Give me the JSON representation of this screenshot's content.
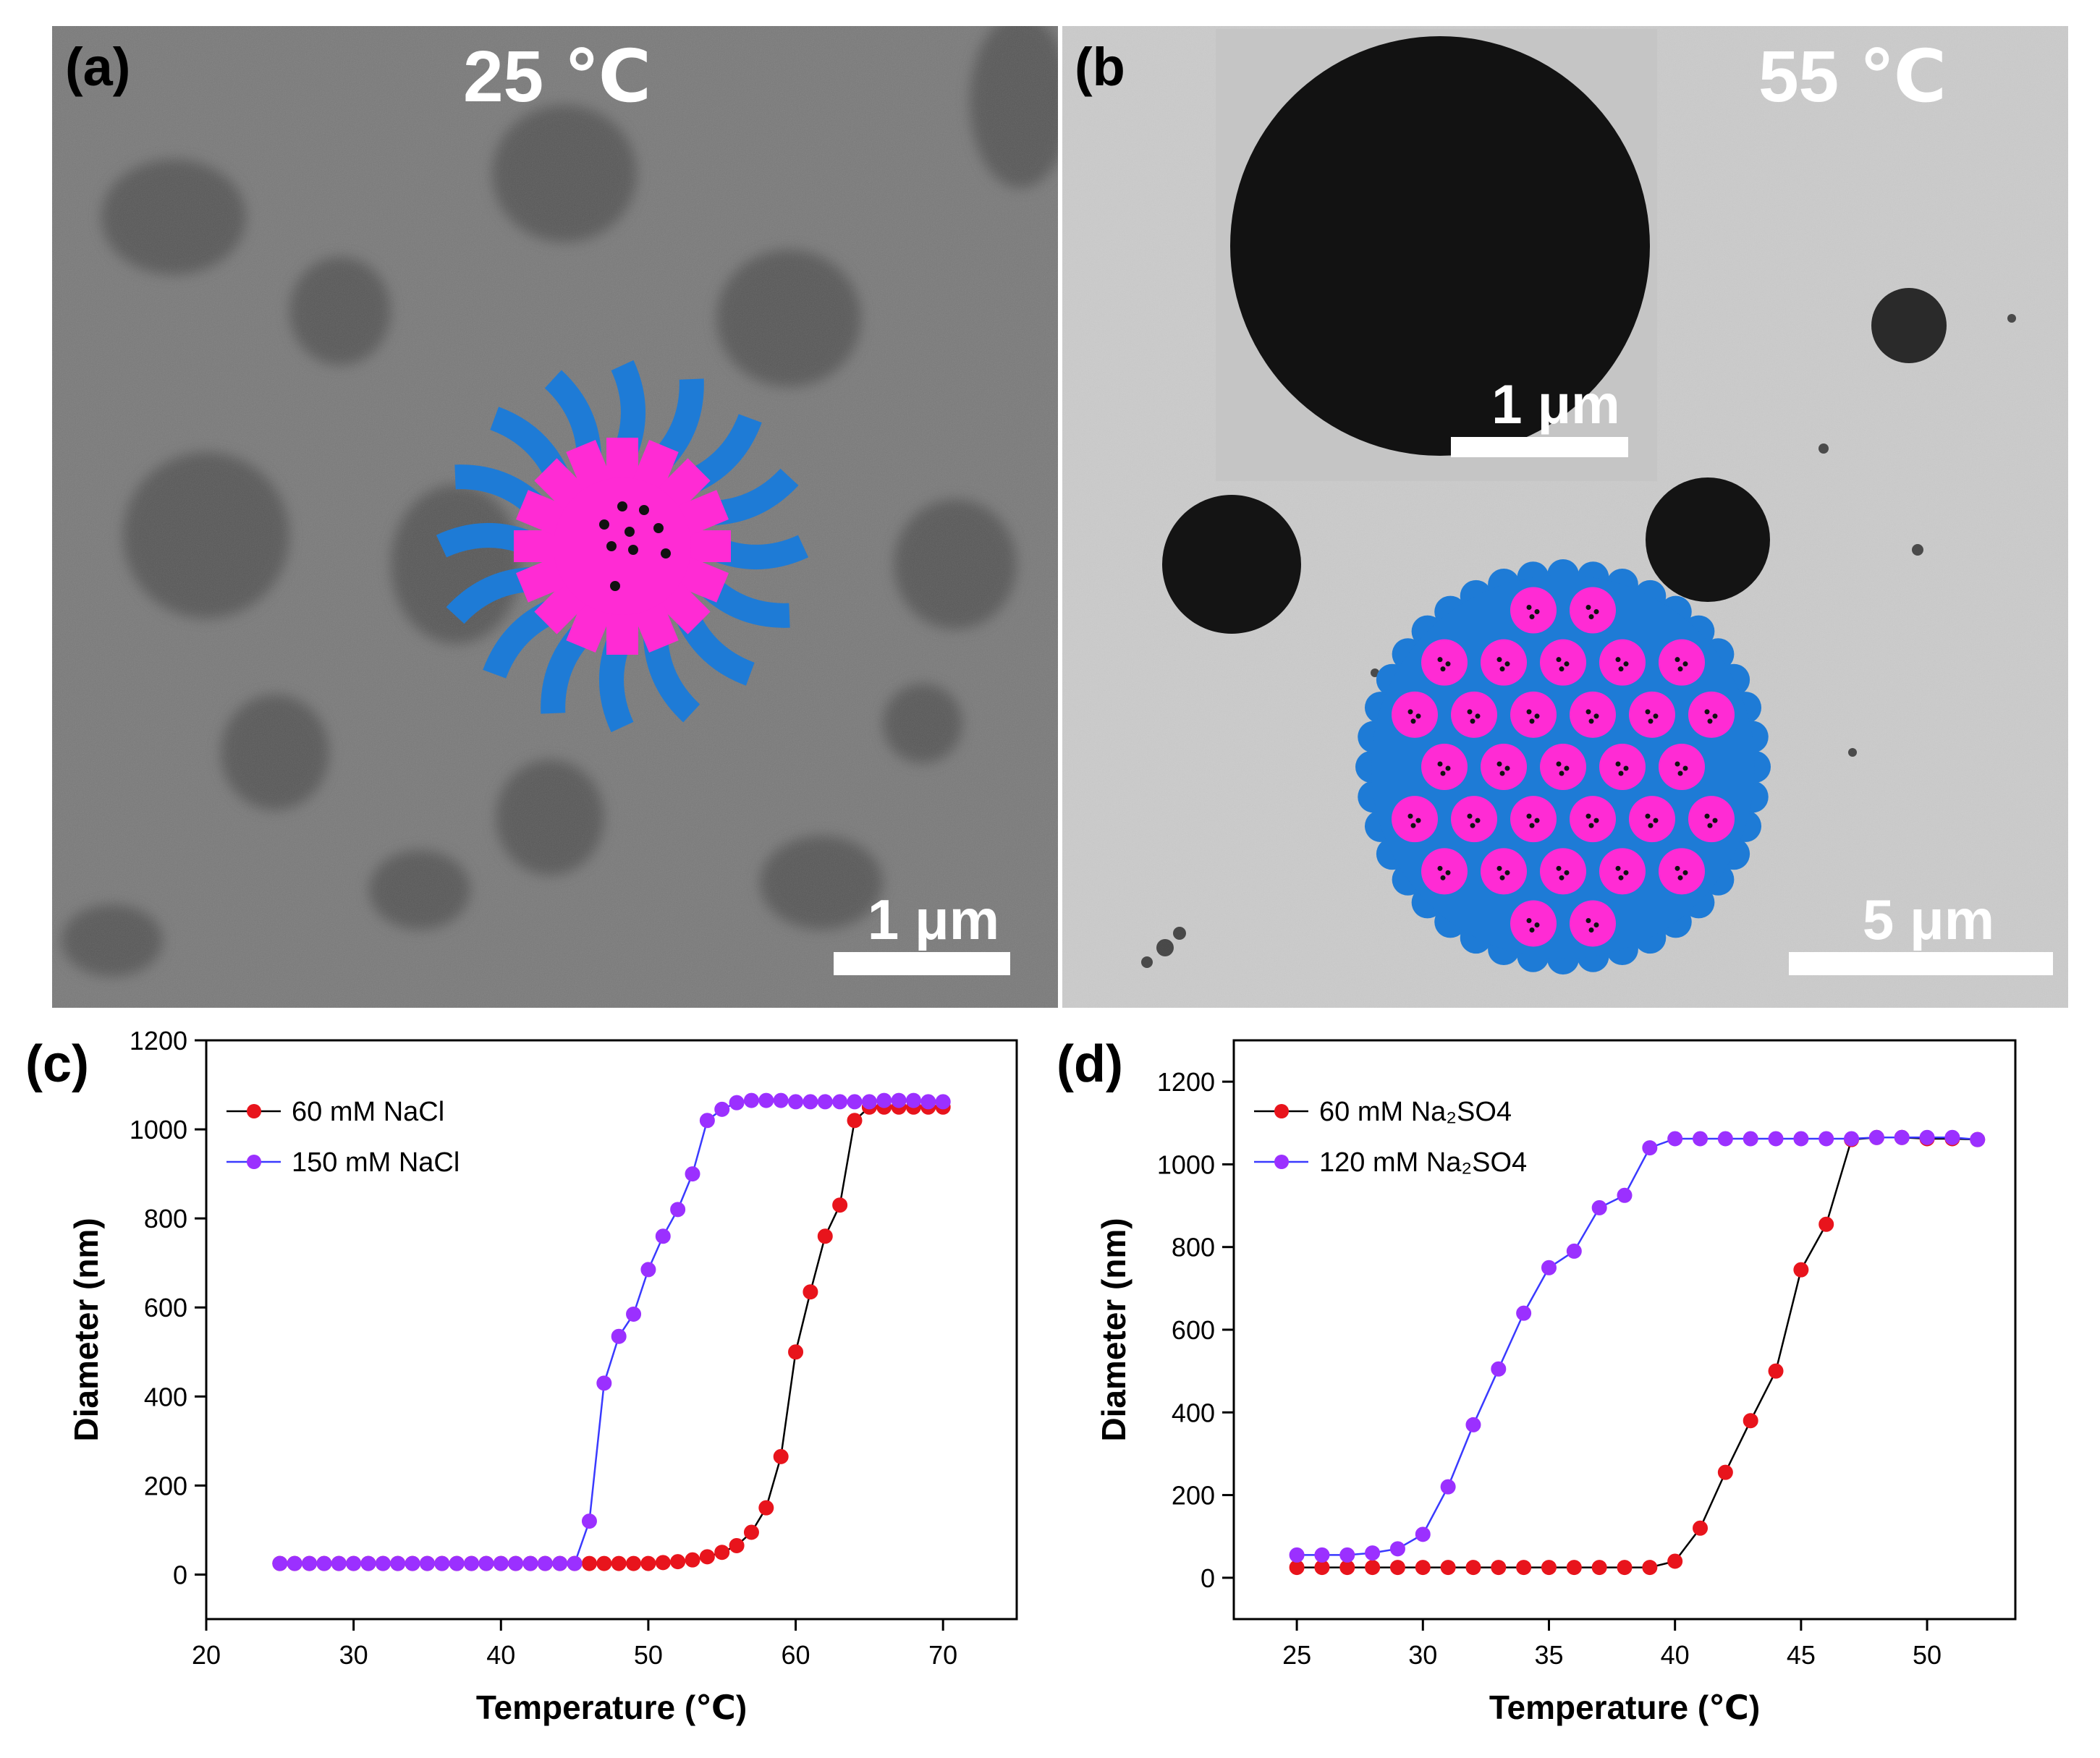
{
  "panels": {
    "a": {
      "label": "(a)",
      "temperature": "25 ℃",
      "scale_bar": "1 μm",
      "colors": {
        "background": "#7a7a7a",
        "blob": "#555555",
        "core": "#ff2bd4",
        "shell": "#1e7bd6",
        "drug": "#111111"
      }
    },
    "b": {
      "label": "(b",
      "temperature": "55 ℃",
      "scale_bar": "5 μm",
      "inset_scale_bar": "1 μm",
      "colors": {
        "background": "#c9c9c9",
        "particle": "#161616",
        "core": "#ff2bd4",
        "shell": "#1e7bd6"
      }
    },
    "c": {
      "label": "(c)"
    },
    "d": {
      "label": "(d)"
    }
  },
  "chart_data": [
    {
      "type": "line",
      "panel": "c",
      "xlabel": "Temperature (℃)",
      "ylabel": "Diameter (nm)",
      "xlim": [
        20,
        75
      ],
      "ylim": [
        -100,
        1200
      ],
      "xticks": [
        20,
        30,
        40,
        50,
        60,
        70
      ],
      "yticks": [
        0,
        200,
        400,
        600,
        800,
        1000,
        1200
      ],
      "legend_position": "top-left",
      "grid": false,
      "series": [
        {
          "name": "60 mM NaCl",
          "color": "#e8141c",
          "line_color": "#000000",
          "x": [
            25,
            26,
            27,
            28,
            29,
            30,
            31,
            32,
            33,
            34,
            35,
            36,
            37,
            38,
            39,
            40,
            41,
            42,
            43,
            44,
            45,
            46,
            47,
            48,
            49,
            50,
            51,
            52,
            53,
            54,
            55,
            56,
            57,
            58,
            59,
            60,
            61,
            62,
            63,
            64,
            65,
            66,
            67,
            68,
            69,
            70
          ],
          "y": [
            25,
            25,
            25,
            25,
            25,
            25,
            25,
            25,
            25,
            25,
            25,
            25,
            25,
            25,
            25,
            25,
            25,
            25,
            25,
            25,
            25,
            25,
            25,
            25,
            25,
            25,
            27,
            29,
            33,
            40,
            50,
            65,
            95,
            150,
            265,
            500,
            635,
            760,
            830,
            1020,
            1050,
            1050,
            1050,
            1050,
            1050,
            1050
          ]
        },
        {
          "name": "150 mM NaCl",
          "color": "#9b30ff",
          "line_color": "#3a3aff",
          "x": [
            25,
            26,
            27,
            28,
            29,
            30,
            31,
            32,
            33,
            34,
            35,
            36,
            37,
            38,
            39,
            40,
            41,
            42,
            43,
            44,
            45,
            46,
            47,
            48,
            49,
            50,
            51,
            52,
            53,
            54,
            55,
            56,
            57,
            58,
            59,
            60,
            61,
            62,
            63,
            64,
            65,
            66,
            67,
            68,
            69,
            70
          ],
          "y": [
            25,
            25,
            25,
            25,
            25,
            25,
            25,
            25,
            25,
            25,
            25,
            25,
            25,
            25,
            25,
            25,
            25,
            25,
            25,
            25,
            25,
            120,
            430,
            535,
            585,
            685,
            760,
            820,
            900,
            1020,
            1045,
            1060,
            1065,
            1065,
            1065,
            1062,
            1062,
            1062,
            1062,
            1062,
            1062,
            1065,
            1065,
            1065,
            1062,
            1062
          ]
        }
      ]
    },
    {
      "type": "line",
      "panel": "d",
      "xlabel": "Temperature (℃)",
      "ylabel": "Diameter (nm)",
      "xlim": [
        22.5,
        53.5
      ],
      "ylim": [
        -100,
        1300
      ],
      "xticks": [
        25,
        30,
        35,
        40,
        45,
        50
      ],
      "yticks": [
        0,
        200,
        400,
        600,
        800,
        1000,
        1200
      ],
      "legend_position": "top-left",
      "grid": false,
      "series": [
        {
          "name": "60 mM Na₂SO4",
          "color": "#e8141c",
          "line_color": "#000000",
          "x": [
            25,
            26,
            27,
            28,
            29,
            30,
            31,
            32,
            33,
            34,
            35,
            36,
            37,
            38,
            39,
            40,
            41,
            42,
            43,
            44,
            45,
            46,
            47,
            48,
            49,
            50,
            51,
            52
          ],
          "y": [
            25,
            25,
            25,
            25,
            25,
            25,
            25,
            25,
            25,
            25,
            25,
            25,
            25,
            25,
            25,
            40,
            120,
            255,
            380,
            500,
            745,
            855,
            1060,
            1065,
            1065,
            1062,
            1062,
            1060
          ]
        },
        {
          "name": "120 mM Na₂SO4",
          "color": "#9b30ff",
          "line_color": "#3a3aff",
          "x": [
            25,
            26,
            27,
            28,
            29,
            30,
            31,
            32,
            33,
            34,
            35,
            36,
            37,
            38,
            39,
            40,
            41,
            42,
            43,
            44,
            45,
            46,
            47,
            48,
            49,
            50,
            51,
            52
          ],
          "y": [
            55,
            55,
            55,
            60,
            70,
            105,
            220,
            370,
            505,
            640,
            750,
            790,
            895,
            925,
            1040,
            1062,
            1062,
            1062,
            1062,
            1062,
            1062,
            1062,
            1062,
            1065,
            1065,
            1065,
            1065,
            1060
          ]
        }
      ]
    }
  ]
}
